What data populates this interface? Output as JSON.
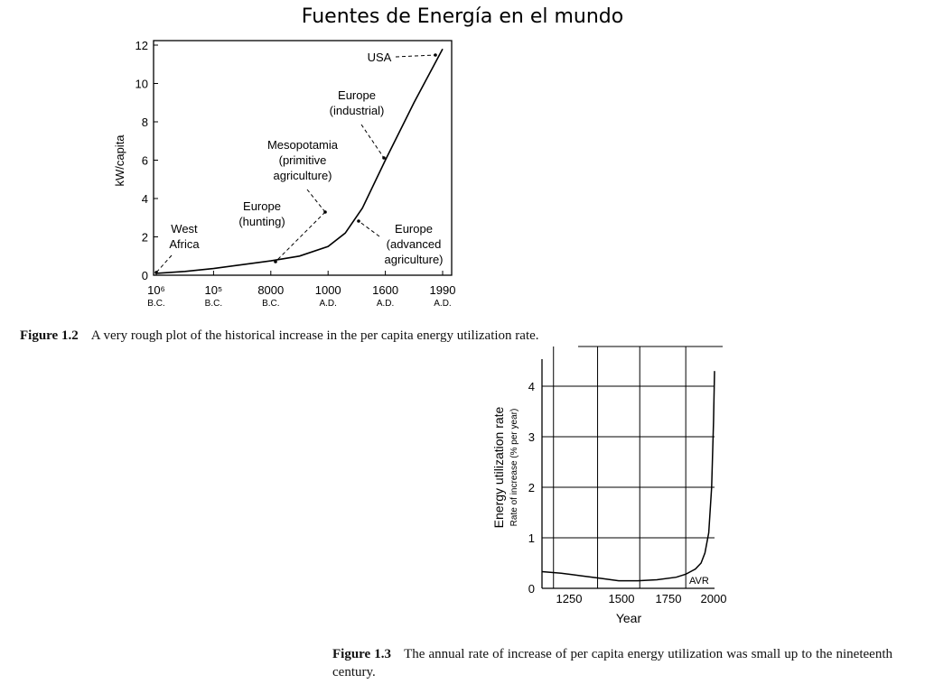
{
  "slide": {
    "title": "Fuentes de Energía en el mundo"
  },
  "figure1": {
    "caption_label": "Figure 1.2",
    "caption_text": "A very rough plot of the historical increase in the per capita energy utilization rate."
  },
  "figure2": {
    "caption_label": "Figure 1.3",
    "caption_text": "The annual rate of increase of per capita energy utilization was small up to the nineteenth century."
  },
  "chart_data": [
    {
      "type": "line",
      "title": "",
      "xlabel": "",
      "ylabel": "kW/capita",
      "ylim": [
        0,
        12
      ],
      "yticks": [
        0,
        2,
        4,
        6,
        8,
        10,
        12
      ],
      "grid": false,
      "x_ticks": [
        {
          "label": "10⁶",
          "sub": "B.C."
        },
        {
          "label": "10⁵",
          "sub": "B.C."
        },
        {
          "label": "8000",
          "sub": "B.C."
        },
        {
          "label": "1000",
          "sub": "A.D."
        },
        {
          "label": "1600",
          "sub": "A.D."
        },
        {
          "label": "1990",
          "sub": "A.D."
        }
      ],
      "series": [
        {
          "x": [
            0,
            0.5,
            1,
            1.5,
            2,
            2.5,
            3,
            3.3,
            3.6,
            4,
            4.5,
            5
          ],
          "values": [
            0.1,
            0.2,
            0.35,
            0.55,
            0.75,
            1.0,
            1.5,
            2.2,
            3.5,
            6.0,
            9.0,
            11.8
          ]
        }
      ],
      "annotations": [
        {
          "text": [
            "USA"
          ],
          "x": 4.9,
          "y": 11.5
        },
        {
          "text": [
            "Europe",
            "(industrial)"
          ],
          "x": 4.0,
          "y": 6.0
        },
        {
          "text": [
            "Mesopotamia",
            "(primitive",
            "agriculture)"
          ],
          "x": 2.3,
          "y": 0.75
        },
        {
          "text": [
            "Europe",
            "(hunting)"
          ],
          "x": 1.8,
          "y": 0.55
        },
        {
          "text": [
            "West",
            "Africa"
          ],
          "x": 0.0,
          "y": 0.1
        },
        {
          "text": [
            "Europe",
            "(advanced",
            "agriculture)"
          ],
          "x": 3.55,
          "y": 3.4
        }
      ]
    },
    {
      "type": "line",
      "title": "",
      "xlabel": "Year",
      "ylabel": "Energy utilization rate",
      "ylabel2": "Rate of increase  (% per year)",
      "xlim": [
        1100,
        2000
      ],
      "ylim": [
        0,
        4.5
      ],
      "xticks": [
        1250,
        1500,
        1750,
        2000
      ],
      "yticks": [
        0,
        1,
        2,
        3,
        4
      ],
      "grid": true,
      "annotation": "AVR",
      "series": [
        {
          "x": [
            1100,
            1200,
            1300,
            1400,
            1500,
            1600,
            1700,
            1800,
            1850,
            1900,
            1930,
            1950,
            1970,
            1985,
            1995,
            2000
          ],
          "values": [
            0.33,
            0.3,
            0.25,
            0.2,
            0.15,
            0.15,
            0.17,
            0.22,
            0.28,
            0.38,
            0.5,
            0.7,
            1.1,
            2.0,
            3.3,
            4.3
          ]
        }
      ]
    }
  ]
}
